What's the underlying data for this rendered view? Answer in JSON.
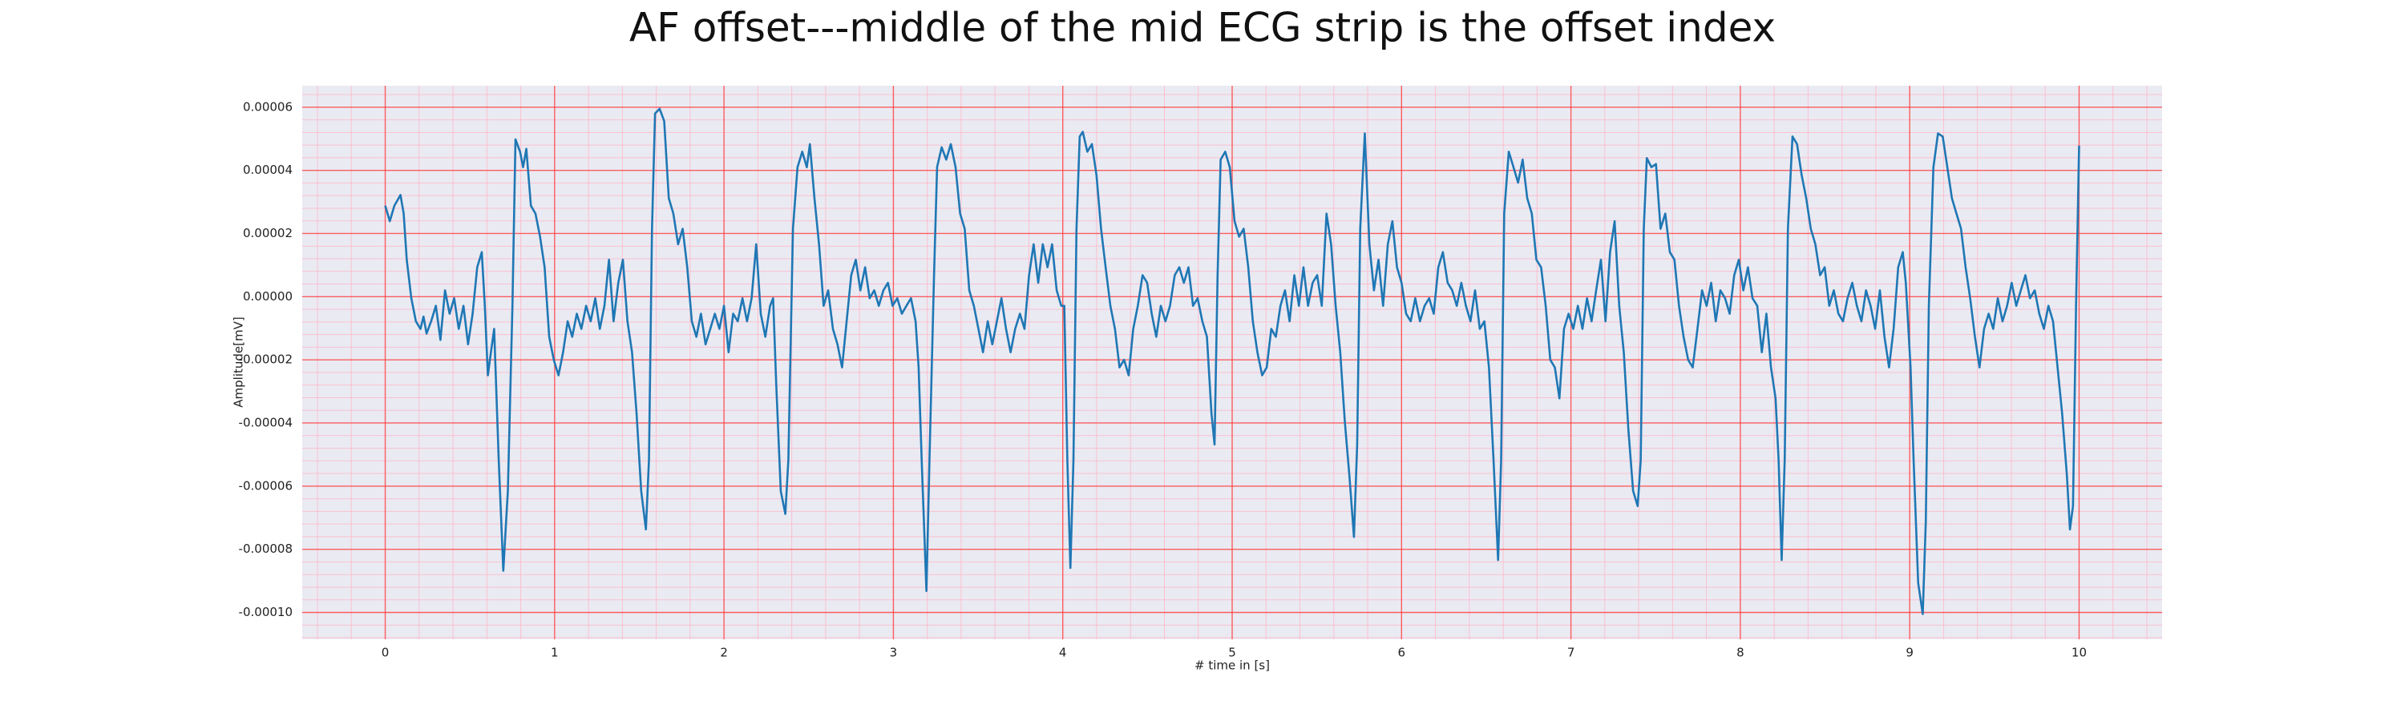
{
  "chart_data": {
    "type": "line",
    "title": "AF offset---middle of the mid ECG strip is the offset index",
    "xlabel": "# time in [s]",
    "ylabel": "Amplitude[mV]",
    "color": "#1f77b4",
    "grid": true,
    "minor_grid": true,
    "xlim": [
      -0.49,
      10.49
    ],
    "ylim": [
      -0.0001085,
      6.68e-05
    ],
    "xticks": [
      0,
      1,
      2,
      3,
      4,
      5,
      6,
      7,
      8,
      9,
      10
    ],
    "yticks": [
      {
        "value": -0.0001,
        "label": "-0.00010"
      },
      {
        "value": -8e-05,
        "label": "-0.00008"
      },
      {
        "value": -6e-05,
        "label": "-0.00006"
      },
      {
        "value": -4e-05,
        "label": "-0.00004"
      },
      {
        "value": -2e-05,
        "label": "-0.00002"
      },
      {
        "value": 0,
        "label": "0.00000"
      },
      {
        "value": 2e-05,
        "label": "0.00002"
      },
      {
        "value": 4e-05,
        "label": "0.00004"
      },
      {
        "value": 6e-05,
        "label": "0.00006"
      }
    ],
    "x": [
      0,
      0.027,
      0.054,
      0.09,
      0.109,
      0.127,
      0.154,
      0.181,
      0.208,
      0.226,
      0.244,
      0.271,
      0.299,
      0.326,
      0.353,
      0.38,
      0.407,
      0.434,
      0.462,
      0.489,
      0.516,
      0.543,
      0.57,
      0.588,
      0.606,
      0.624,
      0.643,
      0.67,
      0.697,
      0.724,
      0.751,
      0.769,
      0.796,
      0.814,
      0.833,
      0.86,
      0.887,
      0.914,
      0.941,
      0.968,
      0.995,
      1.023,
      1.05,
      1.077,
      1.104,
      1.131,
      1.158,
      1.186,
      1.213,
      1.24,
      1.267,
      1.294,
      1.321,
      1.348,
      1.376,
      1.403,
      1.43,
      1.457,
      1.484,
      1.511,
      1.539,
      1.557,
      1.575,
      1.593,
      1.62,
      1.647,
      1.674,
      1.701,
      1.729,
      1.756,
      1.783,
      1.81,
      1.837,
      1.864,
      1.891,
      1.919,
      1.946,
      1.973,
      2,
      2.027,
      2.054,
      2.081,
      2.109,
      2.136,
      2.163,
      2.19,
      2.217,
      2.244,
      2.272,
      2.29,
      2.308,
      2.335,
      2.362,
      2.38,
      2.407,
      2.434,
      2.462,
      2.489,
      2.507,
      2.534,
      2.561,
      2.588,
      2.615,
      2.643,
      2.67,
      2.697,
      2.724,
      2.751,
      2.778,
      2.805,
      2.833,
      2.86,
      2.887,
      2.914,
      2.941,
      2.968,
      2.995,
      3.023,
      3.05,
      3.077,
      3.104,
      3.131,
      3.149,
      3.167,
      3.195,
      3.213,
      3.24,
      3.258,
      3.285,
      3.312,
      3.339,
      3.367,
      3.394,
      3.421,
      3.448,
      3.475,
      3.502,
      3.529,
      3.557,
      3.584,
      3.611,
      3.638,
      3.665,
      3.692,
      3.719,
      3.747,
      3.774,
      3.801,
      3.828,
      3.855,
      3.882,
      3.91,
      3.937,
      3.964,
      3.991,
      4.009,
      4.027,
      4.045,
      4.063,
      4.081,
      4.1,
      4.118,
      4.145,
      4.172,
      4.199,
      4.226,
      4.253,
      4.281,
      4.308,
      4.335,
      4.362,
      4.389,
      4.416,
      4.443,
      4.471,
      4.498,
      4.525,
      4.552,
      4.579,
      4.606,
      4.633,
      4.661,
      4.688,
      4.715,
      4.742,
      4.769,
      4.796,
      4.824,
      4.851,
      4.878,
      4.896,
      4.914,
      4.932,
      4.959,
      4.986,
      5.014,
      5.041,
      5.068,
      5.095,
      5.122,
      5.149,
      5.177,
      5.204,
      5.231,
      5.258,
      5.285,
      5.312,
      5.339,
      5.367,
      5.394,
      5.421,
      5.448,
      5.475,
      5.502,
      5.529,
      5.557,
      5.584,
      5.611,
      5.638,
      5.665,
      5.692,
      5.719,
      5.738,
      5.756,
      5.783,
      5.81,
      5.837,
      5.864,
      5.891,
      5.919,
      5.946,
      5.973,
      6,
      6.027,
      6.054,
      6.081,
      6.109,
      6.136,
      6.163,
      6.19,
      6.217,
      6.244,
      6.272,
      6.299,
      6.326,
      6.353,
      6.38,
      6.407,
      6.434,
      6.462,
      6.489,
      6.516,
      6.543,
      6.57,
      6.588,
      6.606,
      6.633,
      6.661,
      6.688,
      6.715,
      6.742,
      6.769,
      6.796,
      6.824,
      6.851,
      6.878,
      6.905,
      6.932,
      6.959,
      6.986,
      7.014,
      7.041,
      7.068,
      7.095,
      7.122,
      7.149,
      7.177,
      7.204,
      7.231,
      7.258,
      7.285,
      7.312,
      7.339,
      7.367,
      7.394,
      7.412,
      7.43,
      7.448,
      7.475,
      7.502,
      7.529,
      7.557,
      7.584,
      7.611,
      7.638,
      7.665,
      7.692,
      7.719,
      7.747,
      7.774,
      7.801,
      7.828,
      7.855,
      7.882,
      7.91,
      7.937,
      7.964,
      7.991,
      8.018,
      8.045,
      8.072,
      8.1,
      8.127,
      8.154,
      8.181,
      8.208,
      8.226,
      8.244,
      8.262,
      8.281,
      8.308,
      8.335,
      8.362,
      8.389,
      8.416,
      8.443,
      8.471,
      8.498,
      8.525,
      8.552,
      8.579,
      8.606,
      8.633,
      8.661,
      8.688,
      8.715,
      8.742,
      8.769,
      8.796,
      8.824,
      8.851,
      8.878,
      8.905,
      8.932,
      8.959,
      8.977,
      9.005,
      9.023,
      9.05,
      9.077,
      9.095,
      9.113,
      9.14,
      9.167,
      9.195,
      9.222,
      9.249,
      9.276,
      9.303,
      9.33,
      9.357,
      9.385,
      9.412,
      9.439,
      9.466,
      9.493,
      9.52,
      9.548,
      9.575,
      9.602,
      9.629,
      9.656,
      9.683,
      9.71,
      9.738,
      9.765,
      9.792,
      9.819,
      9.846,
      9.873,
      9.9,
      9.928,
      9.946,
      9.964,
      9.982,
      10
    ],
    "values": [
      2.88e-05,
      2.39e-05,
      2.88e-05,
      3.22e-05,
      2.63e-05,
      1.17e-05,
      -5e-07,
      -7.8e-06,
      -1.02e-05,
      -6.3e-06,
      -1.17e-05,
      -7.8e-06,
      -2.9e-06,
      -1.37e-05,
      2e-06,
      -5.4e-06,
      -5e-07,
      -1.02e-05,
      -2.9e-06,
      -1.51e-05,
      -5.4e-06,
      9.3e-06,
      1.41e-05,
      -2.9e-06,
      -2.49e-05,
      -1.76e-05,
      -1.02e-05,
      -5.17e-05,
      -8.68e-05,
      -6.15e-05,
      -2.9e-06,
      4.98e-05,
      4.59e-05,
      4.1e-05,
      4.68e-05,
      2.88e-05,
      2.63e-05,
      1.9e-05,
      9.3e-06,
      -1.27e-05,
      -2e-05,
      -2.49e-05,
      -1.76e-05,
      -7.8e-06,
      -1.27e-05,
      -5.4e-06,
      -1.02e-05,
      -2.9e-06,
      -7.8e-06,
      -5e-07,
      -1.02e-05,
      -2.9e-06,
      1.17e-05,
      -7.8e-06,
      4.4e-06,
      1.17e-05,
      -7.8e-06,
      -1.76e-05,
      -3.71e-05,
      -6.15e-05,
      -7.37e-05,
      -5.17e-05,
      2.15e-05,
      5.8e-05,
      5.95e-05,
      5.56e-05,
      3.12e-05,
      2.63e-05,
      1.66e-05,
      2.15e-05,
      9.3e-06,
      -7.8e-06,
      -1.27e-05,
      -5.4e-06,
      -1.51e-05,
      -1.02e-05,
      -5.4e-06,
      -1.02e-05,
      -2.9e-06,
      -1.76e-05,
      -5.4e-06,
      -7.8e-06,
      -5e-07,
      -7.8e-06,
      -5e-07,
      1.66e-05,
      -5.4e-06,
      -1.27e-05,
      -2.9e-06,
      -5e-07,
      -2.73e-05,
      -6.15e-05,
      -6.88e-05,
      -5.17e-05,
      2.15e-05,
      4.1e-05,
      4.59e-05,
      4.1e-05,
      4.83e-05,
      3.12e-05,
      1.66e-05,
      -2.9e-06,
      2e-06,
      -1.02e-05,
      -1.51e-05,
      -2.24e-05,
      -7.8e-06,
      6.8e-06,
      1.17e-05,
      2e-06,
      9.3e-06,
      -5e-07,
      2e-06,
      -2.9e-06,
      2e-06,
      4.4e-06,
      -2.9e-06,
      -5e-07,
      -5.4e-06,
      -2.9e-06,
      -5e-07,
      -7.8e-06,
      -2.24e-05,
      -5.17e-05,
      -9.32e-05,
      -5.17e-05,
      6.8e-06,
      4.1e-05,
      4.73e-05,
      4.34e-05,
      4.83e-05,
      4.1e-05,
      2.63e-05,
      2.15e-05,
      2e-06,
      -2.9e-06,
      -1.02e-05,
      -1.76e-05,
      -7.8e-06,
      -1.51e-05,
      -7.8e-06,
      -5e-07,
      -1.02e-05,
      -1.76e-05,
      -1.02e-05,
      -5.4e-06,
      -1.02e-05,
      6.8e-06,
      1.66e-05,
      4.4e-06,
      1.66e-05,
      9.3e-06,
      1.66e-05,
      2e-06,
      -2.9e-06,
      -2.9e-06,
      -5.17e-05,
      -8.59e-05,
      -5.17e-05,
      2.15e-05,
      5.07e-05,
      5.22e-05,
      4.59e-05,
      4.83e-05,
      3.85e-05,
      2.15e-05,
      9.3e-06,
      -2.9e-06,
      -1.02e-05,
      -2.24e-05,
      -2e-05,
      -2.49e-05,
      -1.02e-05,
      -2.9e-06,
      6.8e-06,
      4.4e-06,
      -5.4e-06,
      -1.27e-05,
      -2.9e-06,
      -7.8e-06,
      -2.9e-06,
      6.8e-06,
      9.3e-06,
      4.4e-06,
      9.3e-06,
      -2.9e-06,
      -5e-07,
      -7.8e-06,
      -1.27e-05,
      -3.71e-05,
      -4.68e-05,
      6.8e-06,
      4.34e-05,
      4.59e-05,
      4.1e-05,
      2.39e-05,
      1.9e-05,
      2.15e-05,
      9.3e-06,
      -7.8e-06,
      -1.76e-05,
      -2.49e-05,
      -2.24e-05,
      -1.02e-05,
      -1.27e-05,
      -2.9e-06,
      2e-06,
      -7.8e-06,
      6.8e-06,
      -2.9e-06,
      9.3e-06,
      -2.9e-06,
      4.4e-06,
      6.8e-06,
      -2.9e-06,
      2.63e-05,
      1.66e-05,
      -2.9e-06,
      -1.76e-05,
      -3.95e-05,
      -5.66e-05,
      -7.61e-05,
      -4.68e-05,
      2.15e-05,
      5.17e-05,
      1.66e-05,
      2e-06,
      1.17e-05,
      -2.9e-06,
      1.66e-05,
      2.39e-05,
      9.3e-06,
      4.4e-06,
      -5.4e-06,
      -7.8e-06,
      -5e-07,
      -7.8e-06,
      -2.9e-06,
      -5e-07,
      -5.4e-06,
      9.3e-06,
      1.41e-05,
      4.4e-06,
      2e-06,
      -2.9e-06,
      4.4e-06,
      -2.9e-06,
      -7.8e-06,
      2e-06,
      -1.02e-05,
      -7.8e-06,
      -2.24e-05,
      -5.17e-05,
      -8.34e-05,
      -5.17e-05,
      2.63e-05,
      4.59e-05,
      4.1e-05,
      3.61e-05,
      4.34e-05,
      3.12e-05,
      2.63e-05,
      1.17e-05,
      9.3e-06,
      -2.9e-06,
      -2e-05,
      -2.24e-05,
      -3.22e-05,
      -1.02e-05,
      -5.4e-06,
      -1.02e-05,
      -2.9e-06,
      -1.02e-05,
      -5e-07,
      -7.8e-06,
      2e-06,
      1.17e-05,
      -7.8e-06,
      1.41e-05,
      2.39e-05,
      -2.9e-06,
      -1.76e-05,
      -4.2e-05,
      -6.15e-05,
      -6.63e-05,
      -5.17e-05,
      2.15e-05,
      4.39e-05,
      4.1e-05,
      4.2e-05,
      2.15e-05,
      2.63e-05,
      1.41e-05,
      1.17e-05,
      -2.9e-06,
      -1.27e-05,
      -2e-05,
      -2.24e-05,
      -1.02e-05,
      2e-06,
      -2.9e-06,
      4.4e-06,
      -7.8e-06,
      2e-06,
      -5e-07,
      -5.4e-06,
      6.8e-06,
      1.17e-05,
      2e-06,
      9.3e-06,
      -5e-07,
      -2.9e-06,
      -1.76e-05,
      -5.4e-06,
      -2.24e-05,
      -3.22e-05,
      -5.17e-05,
      -8.34e-05,
      -5.17e-05,
      2.15e-05,
      5.07e-05,
      4.83e-05,
      3.85e-05,
      3.12e-05,
      2.15e-05,
      1.66e-05,
      6.8e-06,
      9.3e-06,
      -2.9e-06,
      2e-06,
      -5.4e-06,
      -7.8e-06,
      -5e-07,
      4.4e-06,
      -2.9e-06,
      -7.8e-06,
      2e-06,
      -2.9e-06,
      -1.02e-05,
      2e-06,
      -1.27e-05,
      -2.24e-05,
      -1.02e-05,
      9.3e-06,
      1.41e-05,
      4.4e-06,
      -2.24e-05,
      -5.17e-05,
      -9.07e-05,
      -0.0001005,
      -7.12e-05,
      -2.9e-06,
      4.1e-05,
      5.17e-05,
      5.07e-05,
      4.1e-05,
      3.12e-05,
      2.63e-05,
      2.15e-05,
      9.3e-06,
      -5e-07,
      -1.27e-05,
      -2.24e-05,
      -1.02e-05,
      -5.4e-06,
      -1.02e-05,
      -5e-07,
      -7.8e-06,
      -2.9e-06,
      4.4e-06,
      -2.9e-06,
      2e-06,
      6.8e-06,
      -5e-07,
      2e-06,
      -5.4e-06,
      -1.02e-05,
      -2.9e-06,
      -7.8e-06,
      -2.24e-05,
      -3.71e-05,
      -5.66e-05,
      -7.37e-05,
      -6.63e-05,
      -2.9e-06,
      4.78e-05
    ]
  }
}
